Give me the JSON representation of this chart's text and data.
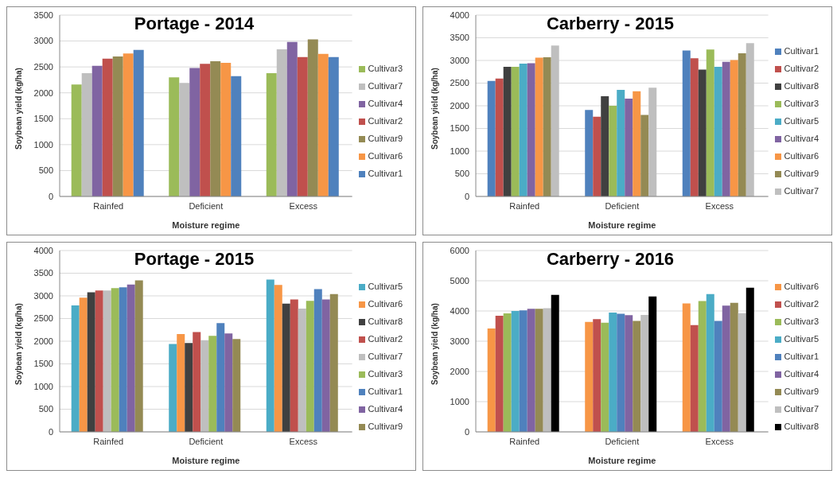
{
  "chart_data": [
    {
      "type": "bar",
      "title": "Portage - 2014",
      "xlabel": "Moisture regime",
      "ylabel": "Soybean yield (kg/ha)",
      "categories": [
        "Rainfed",
        "Deficient",
        "Excess"
      ],
      "ylim": [
        0,
        3500
      ],
      "yticks": [
        0,
        500,
        1000,
        1500,
        2000,
        2500,
        3000,
        3500
      ],
      "grid": "y",
      "legend": "right",
      "series": [
        {
          "name": "Cultivar3",
          "color": "#9bbb59",
          "values": [
            2160,
            2300,
            2380
          ]
        },
        {
          "name": "Cultivar7",
          "color": "#bfbfbf",
          "values": [
            2380,
            2190,
            2840
          ]
        },
        {
          "name": "Cultivar4",
          "color": "#8064a2",
          "values": [
            2520,
            2480,
            2980
          ]
        },
        {
          "name": "Cultivar2",
          "color": "#c0504d",
          "values": [
            2660,
            2560,
            2690
          ]
        },
        {
          "name": "Cultivar9",
          "color": "#948a54",
          "values": [
            2700,
            2610,
            3030
          ]
        },
        {
          "name": "Cultivar6",
          "color": "#f79646",
          "values": [
            2760,
            2580,
            2750
          ]
        },
        {
          "name": "Cultivar1",
          "color": "#4f81bd",
          "values": [
            2830,
            2320,
            2690
          ]
        }
      ]
    },
    {
      "type": "bar",
      "title": "Carberry - 2015",
      "xlabel": "Moisture regime",
      "ylabel": "Soybean yield (kg/ha)",
      "categories": [
        "Rainfed",
        "Deficient",
        "Excess"
      ],
      "ylim": [
        0,
        4000
      ],
      "yticks": [
        0,
        500,
        1000,
        1500,
        2000,
        2500,
        3000,
        3500,
        4000
      ],
      "grid": "y",
      "legend": "right",
      "series": [
        {
          "name": "Cultivar1",
          "color": "#4f81bd",
          "values": [
            2550,
            1910,
            3220
          ]
        },
        {
          "name": "Cultivar2",
          "color": "#c0504d",
          "values": [
            2600,
            1760,
            3050
          ]
        },
        {
          "name": "Cultivar8",
          "color": "#404040",
          "values": [
            2860,
            2210,
            2800
          ]
        },
        {
          "name": "Cultivar3",
          "color": "#9bbb59",
          "values": [
            2860,
            2000,
            3240
          ]
        },
        {
          "name": "Cultivar5",
          "color": "#4bacc6",
          "values": [
            2930,
            2350,
            2860
          ]
        },
        {
          "name": "Cultivar4",
          "color": "#8064a2",
          "values": [
            2940,
            2160,
            2970
          ]
        },
        {
          "name": "Cultivar6",
          "color": "#f79646",
          "values": [
            3060,
            2320,
            3010
          ]
        },
        {
          "name": "Cultivar9",
          "color": "#948a54",
          "values": [
            3070,
            1800,
            3160
          ]
        },
        {
          "name": "Cultivar7",
          "color": "#bfbfbf",
          "values": [
            3330,
            2400,
            3380
          ]
        }
      ]
    },
    {
      "type": "bar",
      "title": "Portage - 2015",
      "xlabel": "Moisture regime",
      "ylabel": "Soybean yield (kg/ha)",
      "categories": [
        "Rainfed",
        "Deficient",
        "Excess"
      ],
      "ylim": [
        0,
        4000
      ],
      "yticks": [
        0,
        500,
        1000,
        1500,
        2000,
        2500,
        3000,
        3500,
        4000
      ],
      "grid": "y",
      "legend": "right",
      "series": [
        {
          "name": "Cultivar5",
          "color": "#4bacc6",
          "values": [
            2790,
            1940,
            3360
          ]
        },
        {
          "name": "Cultivar6",
          "color": "#f79646",
          "values": [
            2960,
            2160,
            3240
          ]
        },
        {
          "name": "Cultivar8",
          "color": "#404040",
          "values": [
            3080,
            1960,
            2830
          ]
        },
        {
          "name": "Cultivar2",
          "color": "#c0504d",
          "values": [
            3120,
            2200,
            2920
          ]
        },
        {
          "name": "Cultivar7",
          "color": "#bfbfbf",
          "values": [
            3120,
            2020,
            2720
          ]
        },
        {
          "name": "Cultivar3",
          "color": "#9bbb59",
          "values": [
            3170,
            2120,
            2890
          ]
        },
        {
          "name": "Cultivar1",
          "color": "#4f81bd",
          "values": [
            3190,
            2400,
            3150
          ]
        },
        {
          "name": "Cultivar4",
          "color": "#8064a2",
          "values": [
            3250,
            2170,
            2920
          ]
        },
        {
          "name": "Cultivar9",
          "color": "#948a54",
          "values": [
            3340,
            2050,
            3040
          ]
        }
      ]
    },
    {
      "type": "bar",
      "title": "Carberry - 2016",
      "xlabel": "Moisture regime",
      "ylabel": "Soybean yield (kg/ha)",
      "categories": [
        "Rainfed",
        "Deficient",
        "Excess"
      ],
      "ylim": [
        0,
        6000
      ],
      "yticks": [
        0,
        1000,
        2000,
        3000,
        4000,
        5000,
        6000
      ],
      "grid": "y",
      "legend": "right",
      "series": [
        {
          "name": "Cultivar6",
          "color": "#f79646",
          "values": [
            3420,
            3640,
            4250
          ]
        },
        {
          "name": "Cultivar2",
          "color": "#c0504d",
          "values": [
            3840,
            3730,
            3530
          ]
        },
        {
          "name": "Cultivar3",
          "color": "#9bbb59",
          "values": [
            3920,
            3610,
            4330
          ]
        },
        {
          "name": "Cultivar5",
          "color": "#4bacc6",
          "values": [
            4000,
            3950,
            4560
          ]
        },
        {
          "name": "Cultivar1",
          "color": "#4f81bd",
          "values": [
            4020,
            3910,
            3670
          ]
        },
        {
          "name": "Cultivar4",
          "color": "#8064a2",
          "values": [
            4070,
            3860,
            4180
          ]
        },
        {
          "name": "Cultivar9",
          "color": "#948a54",
          "values": [
            4070,
            3670,
            4270
          ]
        },
        {
          "name": "Cultivar7",
          "color": "#bfbfbf",
          "values": [
            4090,
            3870,
            3930
          ]
        },
        {
          "name": "Cultivar8",
          "color": "#000000",
          "values": [
            4530,
            4480,
            4770
          ]
        }
      ]
    }
  ]
}
